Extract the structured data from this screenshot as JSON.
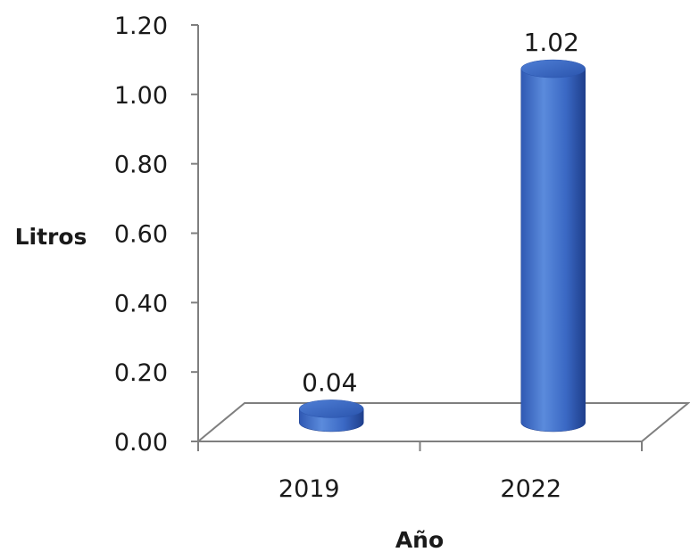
{
  "chart_data": {
    "type": "bar",
    "title": "",
    "xlabel": "Año",
    "ylabel": "Litros",
    "categories": [
      "2019",
      "2022"
    ],
    "values": [
      0.04,
      1.02
    ],
    "data_labels": [
      "0.04",
      "1.02"
    ],
    "y_ticks": [
      "0.00",
      "0.20",
      "0.40",
      "0.60",
      "0.80",
      "1.00",
      "1.20"
    ],
    "ylim": [
      0,
      1.2
    ],
    "grid": false,
    "legend": "none",
    "bar_style": "3d-cylinder",
    "colors": {
      "bar_light": "#5b8bdc",
      "bar_mid": "#3a68c4",
      "bar_dark": "#1f3f8c",
      "axis": "#7f7f7f"
    }
  }
}
